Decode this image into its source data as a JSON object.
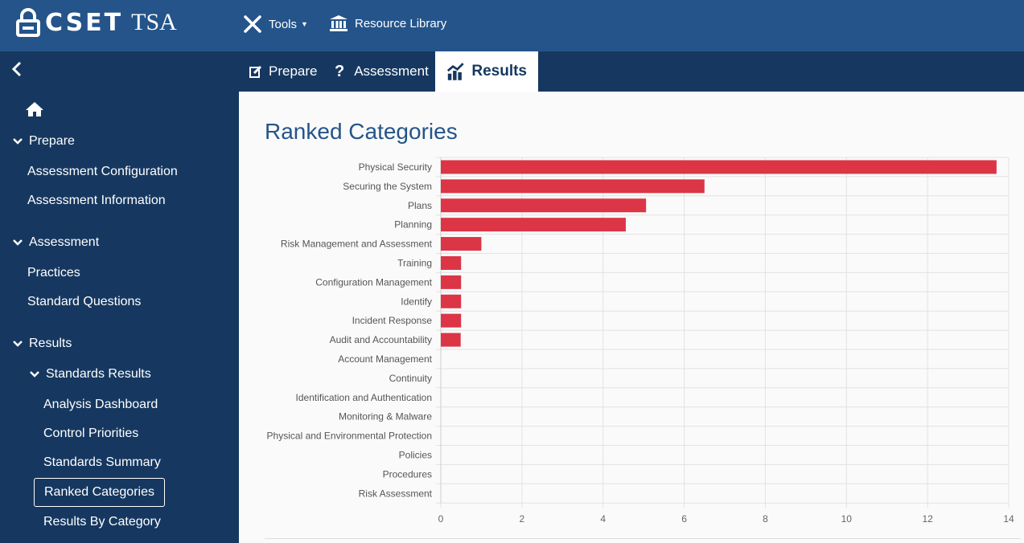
{
  "app": {
    "logo_text": "CSET",
    "logo_suffix": "TSA"
  },
  "topnav": {
    "tools_label": "Tools",
    "resource_label": "Resource Library"
  },
  "tabs": [
    {
      "label": "Prepare"
    },
    {
      "label": "Assessment"
    },
    {
      "label": "Results"
    }
  ],
  "sidebar": {
    "items": [
      {
        "label": "Prepare"
      },
      {
        "label": "Assessment Configuration"
      },
      {
        "label": "Assessment Information"
      },
      {
        "label": "Assessment"
      },
      {
        "label": "Practices"
      },
      {
        "label": "Standard Questions"
      },
      {
        "label": "Results"
      },
      {
        "label": "Standards Results"
      },
      {
        "label": "Analysis Dashboard"
      },
      {
        "label": "Control Priorities"
      },
      {
        "label": "Standards Summary"
      },
      {
        "label": "Ranked Categories"
      },
      {
        "label": "Results By Category"
      }
    ]
  },
  "page": {
    "title": "Ranked Categories"
  },
  "colors": {
    "bar": "#dc3545",
    "header": "#24548a",
    "sidebar": "#163860"
  },
  "chart_data": {
    "type": "bar",
    "orientation": "horizontal",
    "categories": [
      "Physical Security",
      "Securing the System",
      "Plans",
      "Planning",
      "Risk Management and Assessment",
      "Training",
      "Configuration Management",
      "Identify",
      "Incident Response",
      "Audit and Accountability",
      "Account Management",
      "Continuity",
      "Identification and Authentication",
      "Monitoring & Malware",
      "Physical and Environmental Protection",
      "Policies",
      "Procedures",
      "Risk Assessment"
    ],
    "values": [
      13.7,
      6.5,
      5.06,
      4.56,
      1.0,
      0.5,
      0.5,
      0.5,
      0.5,
      0.49,
      0,
      0,
      0,
      0,
      0,
      0,
      0,
      0
    ],
    "xlim": [
      0,
      14
    ],
    "xticks": [
      "0",
      "2",
      "4",
      "6",
      "8",
      "10",
      "12",
      "14"
    ],
    "grid": true
  }
}
